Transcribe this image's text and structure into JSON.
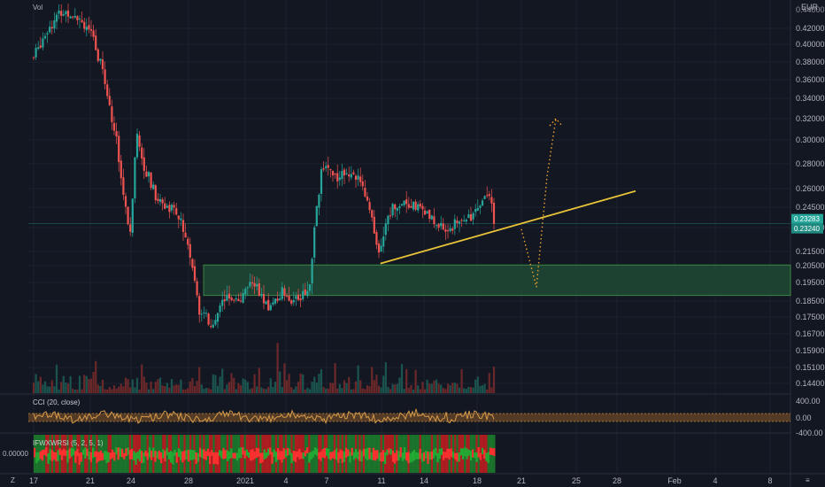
{
  "header": {
    "symbol_label": "Vol",
    "currency": "EUR"
  },
  "colors": {
    "background": "#131722",
    "up": "#26a69a",
    "down": "#ef5350",
    "trendline": "#e8c33a",
    "projection": "#f0a030",
    "zone_fill": "#1f4a35",
    "zone_border": "#4caf50",
    "cci_line": "#d69b4a",
    "ifish_up": "#1e8a2e",
    "ifish_down": "#d21f1f"
  },
  "price_axis": {
    "ticks": [
      "0.42000",
      "0.40000",
      "0.38000",
      "0.36000",
      "0.34000",
      "0.32000",
      "0.30000",
      "0.28000",
      "0.26000",
      "0.24500",
      "0.23000",
      "0.21500",
      "0.20500",
      "0.19500",
      "0.18500",
      "0.17500",
      "0.16700",
      "0.15900",
      "0.15100",
      "0.14400"
    ],
    "top_cut": "0.44000",
    "last_price": "0.23283",
    "last_price_sub": "0.23240"
  },
  "time_axis": {
    "ticks": [
      "17",
      "21",
      "24",
      "28",
      "2021",
      "4",
      "7",
      "11",
      "14",
      "18",
      "21",
      "25",
      "28",
      "Feb",
      "4",
      "8"
    ],
    "corner_label": "Z",
    "right_corner": "≡"
  },
  "cci": {
    "title": "CCI (20, close)",
    "levels": [
      "400.00",
      "0.00",
      "-400.00"
    ]
  },
  "ifish": {
    "title": "IFWXWRSI (5, 2, 5, 1)",
    "value": "0.00000"
  },
  "chart_data": {
    "type": "candlestick",
    "currency": "EUR",
    "y_scale": "custom-nonlinear",
    "x_ticks": [
      "17",
      "21",
      "24",
      "28",
      "2021",
      "4",
      "7",
      "11",
      "14",
      "18",
      "21",
      "25",
      "28",
      "Feb",
      "4",
      "8"
    ],
    "price_path": [
      {
        "x": "17",
        "close": 0.385
      },
      {
        "x": "18",
        "close": 0.42
      },
      {
        "x": "19",
        "close": 0.44
      },
      {
        "x": "20",
        "close": 0.44
      },
      {
        "x": "21",
        "close": 0.42
      },
      {
        "x": "22",
        "close": 0.37
      },
      {
        "x": "23",
        "close": 0.3
      },
      {
        "x": "24",
        "close": 0.22
      },
      {
        "x": "24.5",
        "close": 0.31
      },
      {
        "x": "25",
        "close": 0.28
      },
      {
        "x": "26",
        "close": 0.25
      },
      {
        "x": "27",
        "close": 0.245
      },
      {
        "x": "28",
        "close": 0.228
      },
      {
        "x": "29",
        "close": 0.18
      },
      {
        "x": "30",
        "close": 0.17
      },
      {
        "x": "31",
        "close": 0.19
      },
      {
        "x": "2021",
        "close": 0.185
      },
      {
        "x": "2",
        "close": 0.195
      },
      {
        "x": "3",
        "close": 0.18
      },
      {
        "x": "4",
        "close": 0.19
      },
      {
        "x": "5",
        "close": 0.185
      },
      {
        "x": "6",
        "close": 0.19
      },
      {
        "x": "6.5",
        "close": 0.24
      },
      {
        "x": "7",
        "close": 0.28
      },
      {
        "x": "8",
        "close": 0.27
      },
      {
        "x": "9",
        "close": 0.275
      },
      {
        "x": "10",
        "close": 0.26
      },
      {
        "x": "11",
        "close": 0.215
      },
      {
        "x": "12",
        "close": 0.245
      },
      {
        "x": "13",
        "close": 0.25
      },
      {
        "x": "14",
        "close": 0.245
      },
      {
        "x": "15",
        "close": 0.235
      },
      {
        "x": "16",
        "close": 0.228
      },
      {
        "x": "17",
        "close": 0.235
      },
      {
        "x": "18",
        "close": 0.24
      },
      {
        "x": "19",
        "close": 0.26
      },
      {
        "x": "19.5",
        "close": 0.233
      }
    ],
    "support_zone": {
      "top": 0.2055,
      "bottom": 0.188
    },
    "trendline": {
      "from": {
        "x": "11",
        "price": 0.2065
      },
      "to": {
        "x": "28",
        "price": 0.258
      }
    },
    "projection": [
      {
        "x": "21",
        "price": 0.229
      },
      {
        "x": "22",
        "price": 0.1925
      },
      {
        "x": "23",
        "price": 0.27
      },
      {
        "x": "24",
        "price": 0.32
      }
    ],
    "last_price": 0.23283
  }
}
